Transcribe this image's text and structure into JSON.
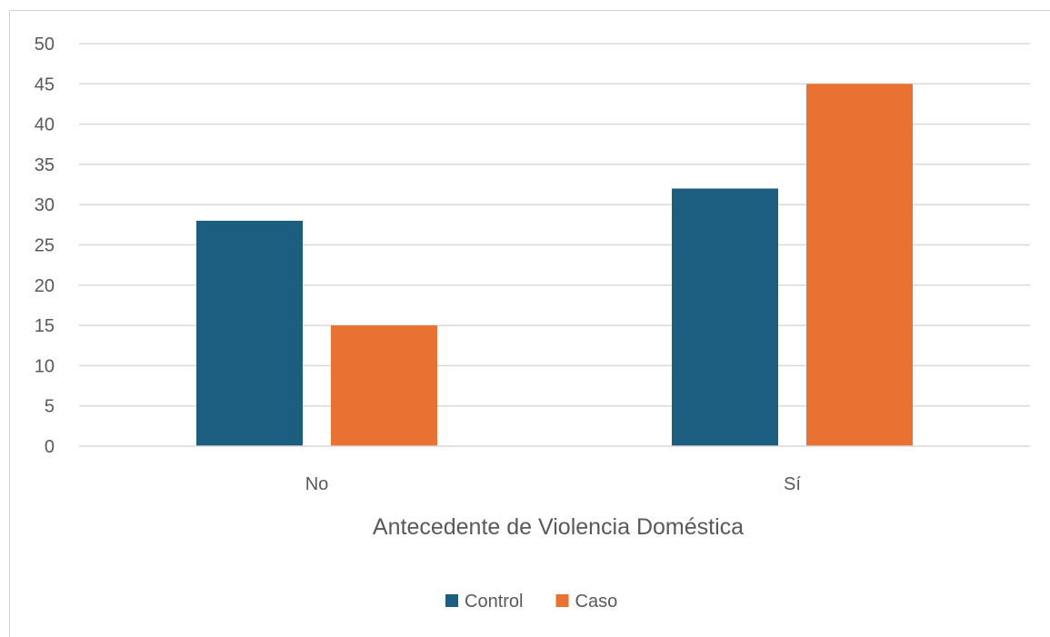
{
  "chart_data": {
    "type": "bar",
    "title": "",
    "xlabel": "Antecedente de Violencia Doméstica",
    "ylabel": "",
    "categories": [
      "No",
      "Sí"
    ],
    "series": [
      {
        "name": "Control",
        "values": [
          28,
          32
        ],
        "color": "#1b5e80"
      },
      {
        "name": "Caso",
        "values": [
          15,
          45
        ],
        "color": "#e97132"
      }
    ],
    "ylim": [
      0,
      50
    ],
    "yticks": [
      0,
      5,
      10,
      15,
      20,
      25,
      30,
      35,
      40,
      45,
      50
    ],
    "grid": true,
    "legend_position": "bottom"
  }
}
